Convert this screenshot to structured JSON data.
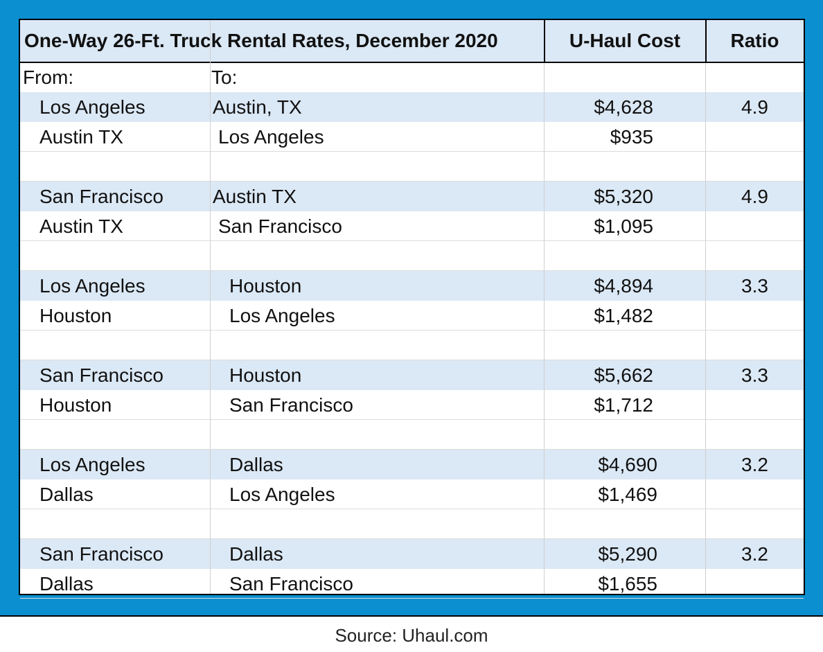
{
  "chart_data": {
    "type": "table",
    "title": "One-Way 26-Ft. Truck Rental Rates, December 2020",
    "columns": [
      "U-Haul Cost",
      "Ratio"
    ],
    "subheader": {
      "from": "From:",
      "to": "To:"
    },
    "rows": [
      {
        "from": "Los Angeles",
        "to": "Austin, TX",
        "cost": "$4,628",
        "ratio": "4.9"
      },
      {
        "from": "Austin TX",
        "to": "Los Angeles",
        "cost": "$935",
        "ratio": ""
      },
      {
        "from": "",
        "to": "",
        "cost": "",
        "ratio": ""
      },
      {
        "from": "San Francisco",
        "to": "Austin TX",
        "cost": "$5,320",
        "ratio": "4.9"
      },
      {
        "from": "Austin TX",
        "to": "San Francisco",
        "cost": "$1,095",
        "ratio": ""
      },
      {
        "from": "",
        "to": "",
        "cost": "",
        "ratio": ""
      },
      {
        "from": "Los Angeles",
        "to": "Houston",
        "cost": "$4,894",
        "ratio": "3.3"
      },
      {
        "from": "Houston",
        "to": "Los Angeles",
        "cost": "$1,482",
        "ratio": ""
      },
      {
        "from": "",
        "to": "",
        "cost": "",
        "ratio": ""
      },
      {
        "from": "San Francisco",
        "to": "Houston",
        "cost": "$5,662",
        "ratio": "3.3"
      },
      {
        "from": "Houston",
        "to": "San Francisco",
        "cost": "$1,712",
        "ratio": ""
      },
      {
        "from": "",
        "to": "",
        "cost": "",
        "ratio": ""
      },
      {
        "from": "Los Angeles",
        "to": "Dallas",
        "cost": "$4,690",
        "ratio": "3.2"
      },
      {
        "from": "Dallas",
        "to": "Los Angeles",
        "cost": "$1,469",
        "ratio": ""
      },
      {
        "from": "",
        "to": "",
        "cost": "",
        "ratio": ""
      },
      {
        "from": "San Francisco",
        "to": "Dallas",
        "cost": "$5,290",
        "ratio": "3.2"
      },
      {
        "from": "Dallas",
        "to": "San Francisco",
        "cost": "$1,655",
        "ratio": ""
      }
    ]
  },
  "source": "Source: Uhaul.com",
  "colors": {
    "frame": "#0b8fd0",
    "band": "#dbe8f5",
    "border": "#000000"
  }
}
